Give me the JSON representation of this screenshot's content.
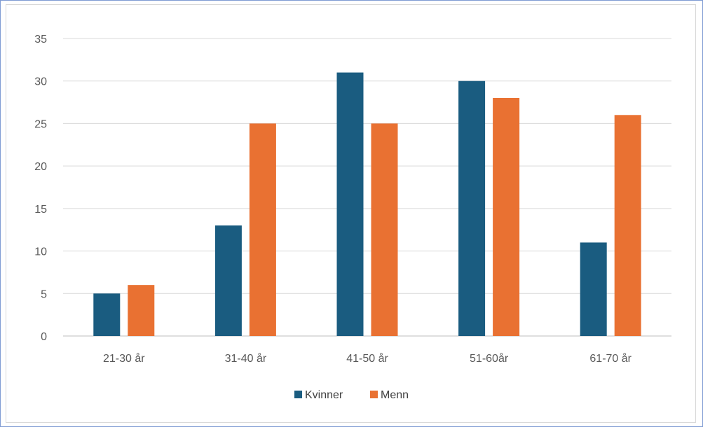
{
  "chart_data": {
    "type": "bar",
    "categories": [
      "21-30 år",
      "31-40 år",
      "41-50 år",
      "51-60år",
      "61-70 år"
    ],
    "series": [
      {
        "name": "Kvinner",
        "values": [
          5,
          13,
          31,
          30,
          11
        ],
        "color": "#1a5c80"
      },
      {
        "name": "Menn",
        "values": [
          6,
          25,
          25,
          28,
          26
        ],
        "color": "#e97132"
      }
    ],
    "ylim": [
      0,
      35
    ],
    "yticks": [
      "0",
      "5",
      "10",
      "15",
      "20",
      "25",
      "30",
      "35"
    ],
    "grid": true,
    "legend_position": "bottom",
    "gridline_color": "#d9d9d9",
    "axis_color": "#bfbfbf"
  }
}
